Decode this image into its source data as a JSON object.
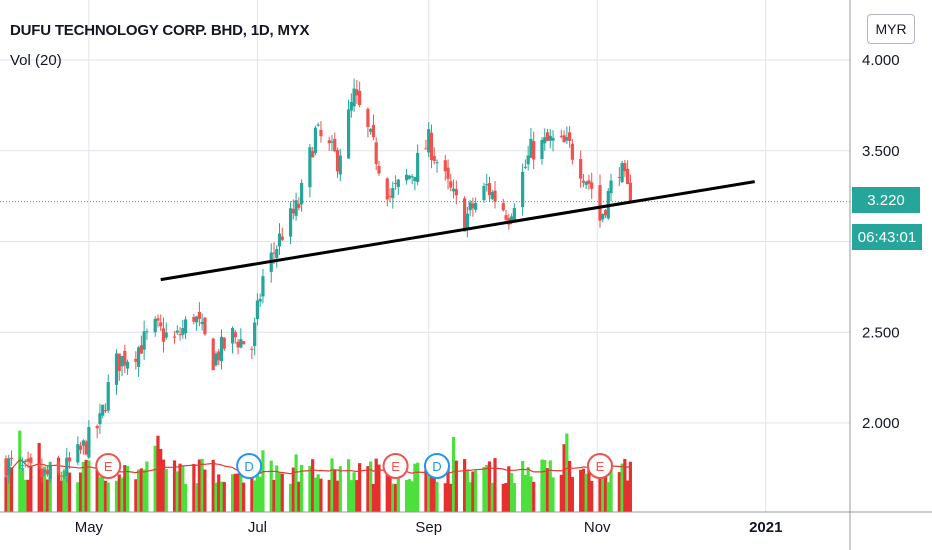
{
  "header": {
    "symbol_title": "DUFU TECHNOLOGY CORP. BHD, 1D, MYX",
    "volume_label": "Vol (20)",
    "currency_button": "MYR"
  },
  "price_tags": {
    "last_price": "3.220",
    "countdown": "06:43:01"
  },
  "colors": {
    "up": "#26a69a",
    "down": "#ef5350",
    "vol_up": "#4ce03c",
    "vol_down": "#e63030",
    "vol_ma": "#e53935",
    "trendline": "#000000",
    "grid": "#e0e3eb"
  },
  "chart_data": {
    "type": "candlestick",
    "title": "DUFU TECHNOLOGY CORP. BHD, 1D, MYX",
    "x_ticks": [
      "May",
      "Jul",
      "Sep",
      "Nov",
      "2021"
    ],
    "y_ticks": [
      "4.000",
      "3.500",
      "2.500",
      "2.000"
    ],
    "ylim": [
      1.6,
      4.05
    ],
    "last_price": 3.22,
    "grid": true,
    "date_range": [
      "2020-04-01",
      "2020-11-13"
    ],
    "price_waypoints": [
      {
        "date": "2020-04-01",
        "price": 1.78
      },
      {
        "date": "2020-04-10",
        "price": 1.72
      },
      {
        "date": "2020-04-20",
        "price": 1.7
      },
      {
        "date": "2020-04-28",
        "price": 1.84
      },
      {
        "date": "2020-05-05",
        "price": 2.0
      },
      {
        "date": "2020-05-10",
        "price": 2.32
      },
      {
        "date": "2020-05-18",
        "price": 2.4
      },
      {
        "date": "2020-05-25",
        "price": 2.52
      },
      {
        "date": "2020-06-01",
        "price": 2.45
      },
      {
        "date": "2020-06-08",
        "price": 2.6
      },
      {
        "date": "2020-06-15",
        "price": 2.35
      },
      {
        "date": "2020-06-22",
        "price": 2.48
      },
      {
        "date": "2020-06-29",
        "price": 2.42
      },
      {
        "date": "2020-07-03",
        "price": 2.8
      },
      {
        "date": "2020-07-10",
        "price": 3.05
      },
      {
        "date": "2020-07-16",
        "price": 3.2
      },
      {
        "date": "2020-07-22",
        "price": 3.6
      },
      {
        "date": "2020-07-30",
        "price": 3.45
      },
      {
        "date": "2020-08-05",
        "price": 3.8
      },
      {
        "date": "2020-08-10",
        "price": 3.6
      },
      {
        "date": "2020-08-18",
        "price": 3.25
      },
      {
        "date": "2020-08-26",
        "price": 3.38
      },
      {
        "date": "2020-09-01",
        "price": 3.55
      },
      {
        "date": "2020-09-08",
        "price": 3.3
      },
      {
        "date": "2020-09-14",
        "price": 3.12
      },
      {
        "date": "2020-09-22",
        "price": 3.3
      },
      {
        "date": "2020-09-30",
        "price": 3.15
      },
      {
        "date": "2020-10-08",
        "price": 3.5
      },
      {
        "date": "2020-10-15",
        "price": 3.55
      },
      {
        "date": "2020-10-22",
        "price": 3.52
      },
      {
        "date": "2020-10-30",
        "price": 3.3
      },
      {
        "date": "2020-11-02",
        "price": 3.12
      },
      {
        "date": "2020-11-06",
        "price": 3.3
      },
      {
        "date": "2020-11-09",
        "price": 3.42
      },
      {
        "date": "2020-11-13",
        "price": 3.22
      }
    ],
    "trendline": [
      {
        "date": "2020-05-27",
        "price": 2.79
      },
      {
        "date": "2020-12-28",
        "price": 3.33
      }
    ],
    "events": [
      {
        "date": "2020-05-08",
        "label": "E"
      },
      {
        "date": "2020-06-28",
        "label": "D"
      },
      {
        "date": "2020-08-20",
        "label": "E"
      },
      {
        "date": "2020-09-04",
        "label": "D"
      },
      {
        "date": "2020-11-02",
        "label": "E"
      }
    ],
    "volume_ma_period": 20
  }
}
